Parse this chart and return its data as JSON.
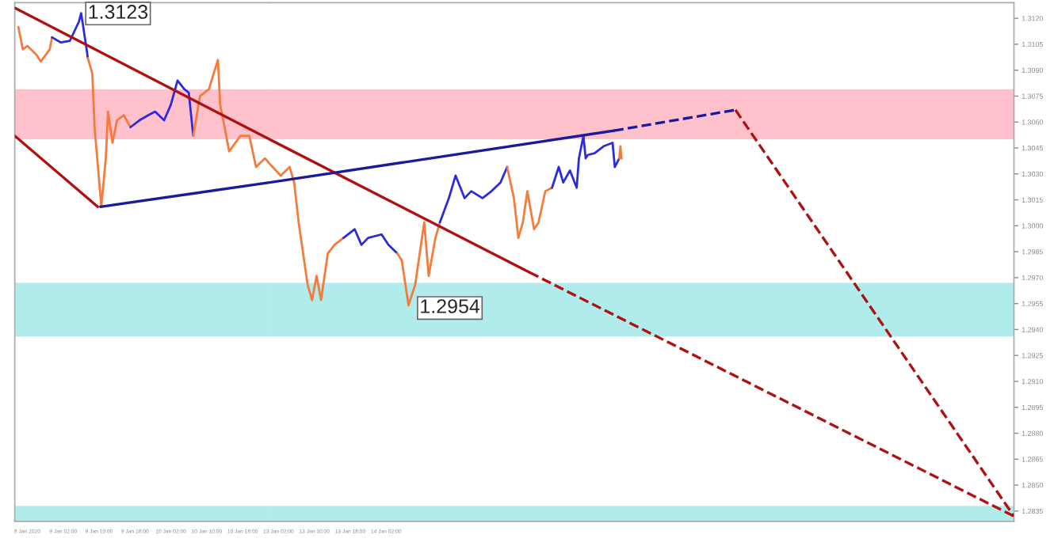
{
  "chart_data": [
    {
      "type": "line",
      "tick_labels": "x",
      "xlim": [
        "2020-01-08T15:12",
        "2020-01-11T00:00"
      ],
      "ylim": [
        1.2829,
        1.3129
      ],
      "xticks": [
        {
          "value": "2020-01-08T18:00",
          "label": "8 Jan 2020"
        },
        {
          "value": "2020-01-09T02:00",
          "label": "9 Jan 02:00"
        },
        {
          "value": "2020-01-09T10:00",
          "label": "9 Jan 10:00"
        },
        {
          "value": "2020-01-09T18:00",
          "label": "9 Jan 18:00"
        },
        {
          "value": "2020-01-10T02:00",
          "label": "10 Jan 02:00"
        },
        {
          "value": "2020-01-10T10:00",
          "label": "10 Jan 10:00"
        },
        {
          "value": "2020-01-10T18:00",
          "label": "10 Jan 18:00"
        }
      ],
      "bands": [
        {
          "axis": "y",
          "from": 1.305,
          "to": 1.3079,
          "color": "#ffc1cc"
        },
        {
          "axis": "y",
          "from": 1.2936,
          "to": 1.2967,
          "color": "#b0ecec"
        },
        {
          "axis": "y",
          "from": 1.2829,
          "to": 1.2838,
          "color": "#b0ecec"
        }
      ],
      "annotations": [
        {
          "text": "1.3123",
          "x": "2020-01-09T06:00",
          "y": 1.3123
        }
      ],
      "series": [
        {
          "color": "#f47b3c",
          "x": [
            "2020-01-08T16:00",
            "2020-01-08T17:00",
            "2020-01-08T18:00",
            "2020-01-08T20:00",
            "2020-01-08T21:00",
            "2020-01-08T23:00",
            "2020-01-08T23:30"
          ],
          "values": [
            1.3115,
            1.3102,
            1.3104,
            1.3099,
            1.3095,
            1.3102,
            1.3109
          ]
        },
        {
          "color": "#2b2bdb",
          "x": [
            "2020-01-08T23:30",
            "2020-01-09T01:30",
            "2020-01-09T03:30",
            "2020-01-09T05:30",
            "2020-01-09T06:00",
            "2020-01-09T07:00",
            "2020-01-09T07:30"
          ],
          "values": [
            1.3109,
            1.3106,
            1.3107,
            1.3118,
            1.3123,
            1.3106,
            1.3097
          ]
        },
        {
          "color": "#f47b3c",
          "x": [
            "2020-01-09T07:30",
            "2020-01-09T08:30",
            "2020-01-09T09:00",
            "2020-01-09T10:30",
            "2020-01-09T11:30",
            "2020-01-09T12:00",
            "2020-01-09T13:00",
            "2020-01-09T14:00",
            "2020-01-09T15:30",
            "2020-01-09T17:00"
          ],
          "values": [
            1.3097,
            1.3088,
            1.3057,
            1.3011,
            1.3039,
            1.3066,
            1.3048,
            1.3061,
            1.3064,
            1.3057
          ]
        },
        {
          "color": "#2b2bdb",
          "x": [
            "2020-01-09T17:00",
            "2020-01-09T19:00",
            "2020-01-09T21:00",
            "2020-01-09T22:30",
            "2020-01-10T00:30",
            "2020-01-10T02:00",
            "2020-01-10T03:30",
            "2020-01-10T05:00",
            "2020-01-10T06:00",
            "2020-01-10T07:00"
          ],
          "values": [
            1.3057,
            1.3061,
            1.3064,
            1.3066,
            1.3061,
            1.307,
            1.3084,
            1.3079,
            1.3077,
            1.3052
          ]
        },
        {
          "color": "#f47b3c",
          "x": [
            "2020-01-10T07:00",
            "2020-01-10T08:30",
            "2020-01-10T10:30",
            "2020-01-10T12:30",
            "2020-01-10T13:00",
            "2020-01-10T14:00",
            "2020-01-10T15:00",
            "2020-01-10T17:30",
            "2020-01-10T19:30",
            "2020-01-10T21:00",
            "2020-01-10T23:00",
            "2020-01-11T00:00"
          ],
          "values": [
            1.3052,
            1.3075,
            1.3079,
            1.3096,
            1.307,
            1.3057,
            1.3043,
            1.3052,
            1.3052,
            1.3034,
            1.3039,
            1.3036
          ]
        },
        {
          "color": "#b01010",
          "line_style": "solid",
          "x": [
            "2020-01-08T15:12",
            "2020-01-09T09:42"
          ],
          "values": [
            1.3052,
            1.3011
          ]
        },
        {
          "color": "#b01010",
          "line_style": "solid",
          "x": [
            "2020-01-08T15:12",
            "2020-01-11T00:00"
          ],
          "values": [
            1.3126,
            1.305
          ]
        },
        {
          "color": "#1a1a9c",
          "line_style": "solid",
          "x": [
            "2020-01-09T10:18",
            "2020-01-11T00:00"
          ],
          "values": [
            1.3011,
            1.3025
          ]
        }
      ]
    },
    {
      "type": "line",
      "xlim": [
        "2020-01-13T00:00",
        "2020-01-19T22:00"
      ],
      "ylim": [
        1.2829,
        1.3129
      ],
      "xticks": [
        {
          "value": "2020-01-13T02:00",
          "label": "13 Jan 02:00"
        },
        {
          "value": "2020-01-13T10:00",
          "label": "13 Jan 10:00"
        },
        {
          "value": "2020-01-13T18:00",
          "label": "13 Jan 18:00"
        },
        {
          "value": "2020-01-14T02:00",
          "label": "14 Jan 02:00"
        }
      ],
      "bands": [
        {
          "axis": "y",
          "from": 1.305,
          "to": 1.3079,
          "color": "#ffc1cc"
        },
        {
          "axis": "y",
          "from": 1.2936,
          "to": 1.2967,
          "color": "#b0ecec"
        },
        {
          "axis": "y",
          "from": 1.2829,
          "to": 1.2838,
          "color": "#b0ecec"
        }
      ],
      "annotations": [
        {
          "text": "1.2954",
          "x": "2020-01-14T07:00",
          "y": 1.2954
        }
      ],
      "series": [
        {
          "color": "#f47b3c",
          "x": [
            "2020-01-13T00:00",
            "2020-01-13T02:30",
            "2020-01-13T04:30",
            "2020-01-13T05:30",
            "2020-01-13T06:30",
            "2020-01-13T07:30",
            "2020-01-13T08:30",
            "2020-01-13T09:30",
            "2020-01-13T10:30",
            "2020-01-13T11:30",
            "2020-01-13T13:00",
            "2020-01-13T14:30",
            "2020-01-13T16:30"
          ],
          "values": [
            1.3036,
            1.3029,
            1.3034,
            1.3025,
            1.3002,
            1.2984,
            1.2966,
            1.2957,
            1.2971,
            1.2957,
            1.2984,
            1.2989,
            1.2993
          ]
        },
        {
          "color": "#2b2bdb",
          "x": [
            "2020-01-13T16:30",
            "2020-01-13T19:00",
            "2020-01-13T20:30",
            "2020-01-13T22:00",
            "2020-01-14T01:00",
            "2020-01-14T02:30",
            "2020-01-14T04:30"
          ],
          "values": [
            1.2993,
            1.2998,
            1.2989,
            1.2993,
            1.2995,
            1.2989,
            1.2984
          ]
        },
        {
          "color": "#f47b3c",
          "x": [
            "2020-01-14T04:30",
            "2020-01-14T05:30",
            "2020-01-14T07:00",
            "2020-01-14T08:30",
            "2020-01-14T09:30",
            "2020-01-14T10:30",
            "2020-01-14T11:30",
            "2020-01-14T13:00",
            "2020-01-14T14:00"
          ],
          "values": [
            1.2984,
            1.298,
            1.2954,
            1.2966,
            1.2984,
            1.3002,
            1.2971,
            1.2993,
            1.3002
          ]
        },
        {
          "color": "#2b2bdb",
          "x": [
            "2020-01-14T14:00",
            "2020-01-14T16:00",
            "2020-01-14T17:30",
            "2020-01-14T19:30",
            "2020-01-14T21:00",
            "2020-01-14T23:30",
            "2020-01-15T01:30",
            "2020-01-15T03:30",
            "2020-01-15T05:00"
          ],
          "values": [
            1.3002,
            1.3016,
            1.3029,
            1.3016,
            1.302,
            1.3016,
            1.302,
            1.3025,
            1.3034
          ]
        },
        {
          "color": "#f47b3c",
          "x": [
            "2020-01-15T05:00",
            "2020-01-15T06:30",
            "2020-01-15T07:30",
            "2020-01-15T08:30",
            "2020-01-15T09:30",
            "2020-01-15T11:00",
            "2020-01-15T12:00",
            "2020-01-15T13:30",
            "2020-01-15T15:00"
          ],
          "values": [
            1.3034,
            1.3016,
            1.2993,
            1.3002,
            1.302,
            1.2998,
            1.3002,
            1.302,
            1.3022
          ]
        },
        {
          "color": "#2b2bdb",
          "x": [
            "2020-01-15T15:00",
            "2020-01-15T16:30",
            "2020-01-15T17:30",
            "2020-01-15T19:00",
            "2020-01-15T20:30",
            "2020-01-15T21:00",
            "2020-01-15T22:00",
            "2020-01-15T22:30",
            "2020-01-15T23:00",
            "2020-01-16T00:30",
            "2020-01-16T02:30",
            "2020-01-16T04:30",
            "2020-01-16T05:00",
            "2020-01-16T06:00"
          ],
          "values": [
            1.3022,
            1.3034,
            1.3025,
            1.3032,
            1.3022,
            1.3039,
            1.3052,
            1.3039,
            1.3041,
            1.3042,
            1.3046,
            1.3048,
            1.3034,
            1.3039
          ]
        },
        {
          "color": "#f47b3c",
          "x": [
            "2020-01-16T06:00",
            "2020-01-16T06:15",
            "2020-01-16T06:30"
          ],
          "values": [
            1.3039,
            1.3046,
            1.3039
          ]
        },
        {
          "color": "#b01010",
          "line_style": "solid",
          "x": [
            "2020-01-13T00:00",
            "2020-01-15T10:00"
          ],
          "values": [
            1.305,
            1.2973
          ]
        },
        {
          "color": "#b01010",
          "line_style": "dashed",
          "x": [
            "2020-01-15T10:00",
            "2020-01-19T22:00"
          ],
          "values": [
            1.2973,
            1.2832
          ]
        },
        {
          "color": "#1a1a9c",
          "line_style": "solid",
          "x": [
            "2020-01-13T00:00",
            "2020-01-16T04:48"
          ],
          "values": [
            1.3025,
            1.3055
          ]
        },
        {
          "color": "#1a1a9c",
          "line_style": "dashed",
          "x": [
            "2020-01-16T04:48",
            "2020-01-17T07:54"
          ],
          "values": [
            1.3055,
            1.3067
          ]
        },
        {
          "color": "#b01010",
          "line_style": "dashed",
          "x": [
            "2020-01-17T07:54",
            "2020-01-19T22:00"
          ],
          "values": [
            1.3067,
            1.2832
          ]
        }
      ],
      "yticks": [
        {
          "value": 1.2835,
          "label": "1.2835"
        },
        {
          "value": 1.285,
          "label": "1.2850"
        },
        {
          "value": 1.2865,
          "label": "1.2865"
        },
        {
          "value": 1.288,
          "label": "1.2880"
        },
        {
          "value": 1.2895,
          "label": "1.2895"
        },
        {
          "value": 1.291,
          "label": "1.2910"
        },
        {
          "value": 1.2925,
          "label": "1.2925"
        },
        {
          "value": 1.294,
          "label": "1.2940"
        },
        {
          "value": 1.2955,
          "label": "1.2955"
        },
        {
          "value": 1.297,
          "label": "1.2970"
        },
        {
          "value": 1.2985,
          "label": "1.2985"
        },
        {
          "value": 1.3,
          "label": "1.3000"
        },
        {
          "value": 1.3015,
          "label": "1.3015"
        },
        {
          "value": 1.303,
          "label": "1.3030"
        },
        {
          "value": 1.3045,
          "label": "1.3045"
        },
        {
          "value": 1.306,
          "label": "1.3060"
        },
        {
          "value": 1.3075,
          "label": "1.3075"
        },
        {
          "value": 1.309,
          "label": "1.3090"
        },
        {
          "value": 1.3105,
          "label": "1.3105"
        },
        {
          "value": 1.312,
          "label": "1.3120"
        }
      ]
    }
  ]
}
